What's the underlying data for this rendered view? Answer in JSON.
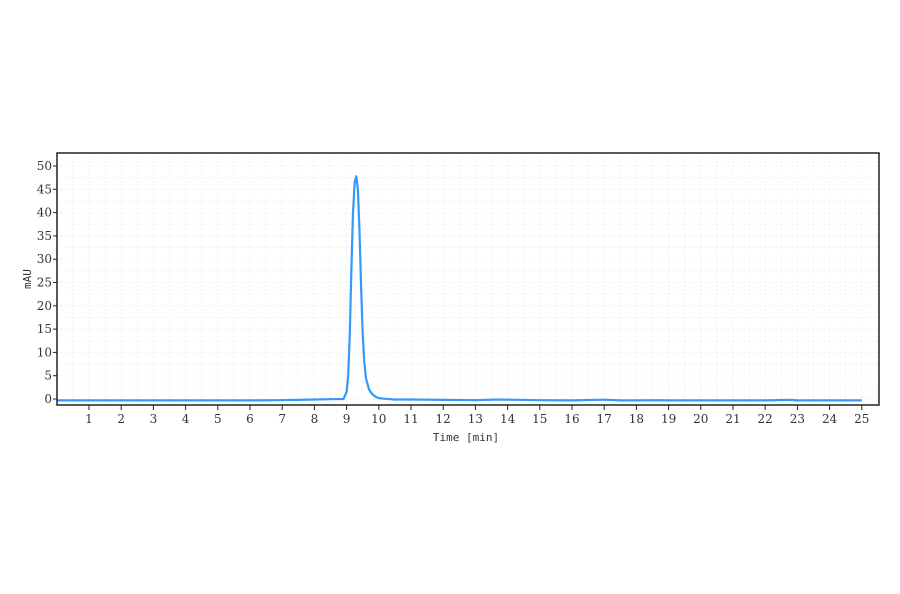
{
  "chart_data": {
    "type": "line",
    "title": "",
    "xlabel": "Time [min]",
    "ylabel": "mAU",
    "xlim": [
      0,
      25.6
    ],
    "ylim": [
      -1.3,
      52.8
    ],
    "xticks": [
      1,
      2,
      3,
      4,
      5,
      6,
      7,
      8,
      9,
      10,
      11,
      12,
      13,
      14,
      15,
      16,
      17,
      18,
      19,
      20,
      21,
      22,
      23,
      24,
      25
    ],
    "yticks": [
      0,
      5,
      10,
      15,
      20,
      25,
      30,
      35,
      40,
      45,
      50
    ],
    "grid": true,
    "legend": "none",
    "line_color": "#3399ff",
    "series": [
      {
        "x": [
          0,
          1,
          2,
          3,
          4,
          5,
          6,
          6.8,
          7.5,
          8,
          8.5,
          8.9,
          9.0,
          9.05,
          9.1,
          9.15,
          9.2,
          9.25,
          9.3,
          9.35,
          9.4,
          9.45,
          9.5,
          9.55,
          9.6,
          9.7,
          9.8,
          9.9,
          10.0,
          10.2,
          10.5,
          11,
          11.5,
          12,
          13,
          13.7,
          14,
          15,
          16,
          17,
          17.5,
          18,
          18.7,
          19,
          20,
          21,
          22,
          22.8,
          23,
          24,
          25
        ],
        "y": [
          -0.3,
          -0.3,
          -0.3,
          -0.3,
          -0.3,
          -0.3,
          -0.3,
          -0.25,
          -0.2,
          -0.1,
          -0.05,
          0.0,
          1.5,
          5,
          14,
          28,
          40,
          46.5,
          47.8,
          45,
          36,
          24,
          14,
          8,
          4.5,
          2,
          1,
          0.5,
          0.2,
          0.05,
          -0.1,
          -0.1,
          -0.15,
          -0.2,
          -0.25,
          -0.1,
          -0.15,
          -0.25,
          -0.3,
          -0.15,
          -0.3,
          -0.3,
          -0.25,
          -0.3,
          -0.3,
          -0.3,
          -0.3,
          -0.2,
          -0.3,
          -0.3,
          -0.3
        ]
      }
    ]
  }
}
